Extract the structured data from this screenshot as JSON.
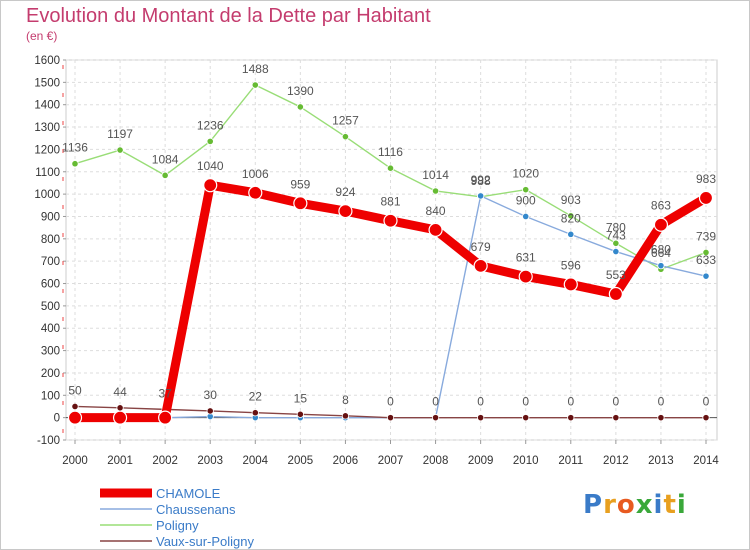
{
  "header": {
    "title": "Evolution du Montant de la Dette par Habitant",
    "unit": "(en €)"
  },
  "logo": {
    "text": "Proxiti",
    "letters": [
      {
        "ch": "P",
        "color": "#3a7bc8"
      },
      {
        "ch": "r",
        "color": "#e8a020"
      },
      {
        "ch": "o",
        "color": "#e85a20"
      },
      {
        "ch": "x",
        "color": "#3aa83a"
      },
      {
        "ch": "i",
        "color": "#3a7bc8"
      },
      {
        "ch": "t",
        "color": "#e8a020"
      },
      {
        "ch": "i",
        "color": "#3aa83a"
      }
    ]
  },
  "chart_data": {
    "type": "line",
    "title": "Evolution du Montant de la Dette par Habitant",
    "ylabel": "(en €)",
    "xlabel": "",
    "ylim": [
      -100,
      1600
    ],
    "yticks": [
      -100,
      0,
      100,
      200,
      300,
      400,
      500,
      600,
      700,
      800,
      900,
      1000,
      1100,
      1200,
      1300,
      1400,
      1500,
      1600
    ],
    "grid": true,
    "categories": [
      "2000",
      "2001",
      "2002",
      "2003",
      "2004",
      "2005",
      "2006",
      "2007",
      "2008",
      "2009",
      "2010",
      "2011",
      "2012",
      "2013",
      "2014"
    ],
    "series": [
      {
        "name": "Poligny",
        "color": "#99dd77",
        "marker": "#66bb33",
        "values": [
          1136,
          1197,
          1084,
          1236,
          1488,
          1390,
          1257,
          1116,
          1014,
          988,
          1020,
          903,
          780,
          664,
          739
        ],
        "labels": [
          "1136",
          "1197",
          "1084",
          "1236",
          "1488",
          "1390",
          "1257",
          "1116",
          "1014",
          "988",
          "1020",
          "903",
          "780",
          "664",
          "739"
        ]
      },
      {
        "name": "Chaussenans",
        "color": "#88aadd",
        "marker": "#3388cc",
        "values": [
          0,
          0,
          0,
          5,
          0,
          0,
          0,
          0,
          0,
          992,
          900,
          820,
          743,
          680,
          633
        ],
        "labels": [
          "",
          "",
          "",
          "",
          "",
          "",
          "",
          "",
          "",
          "992",
          "900",
          "820",
          "743",
          "680",
          "633"
        ]
      },
      {
        "name": "Vaux-sur-Poligny",
        "color": "#884444",
        "marker": "#661111",
        "values": [
          50,
          44,
          37,
          30,
          22,
          15,
          8,
          0,
          0,
          0,
          0,
          0,
          0,
          0,
          0
        ],
        "labels": [
          "50",
          "44",
          "37",
          "30",
          "22",
          "15",
          "8",
          "0",
          "0",
          "0",
          "0",
          "0",
          "0",
          "0",
          "0"
        ]
      },
      {
        "name": "CHAMOLE",
        "color": "#ee0000",
        "marker": "#ee0000",
        "values": [
          0,
          0,
          0,
          1040,
          1006,
          959,
          924,
          881,
          840,
          679,
          631,
          596,
          553,
          863,
          983
        ],
        "labels": [
          "0",
          "0",
          "0",
          "1040",
          "1006",
          "959",
          "924",
          "881",
          "840",
          "679",
          "631",
          "596",
          "553",
          "863",
          "983"
        ]
      }
    ],
    "legend": [
      "CHAMOLE",
      "Chaussenans",
      "Poligny",
      "Vaux-sur-Poligny"
    ]
  }
}
